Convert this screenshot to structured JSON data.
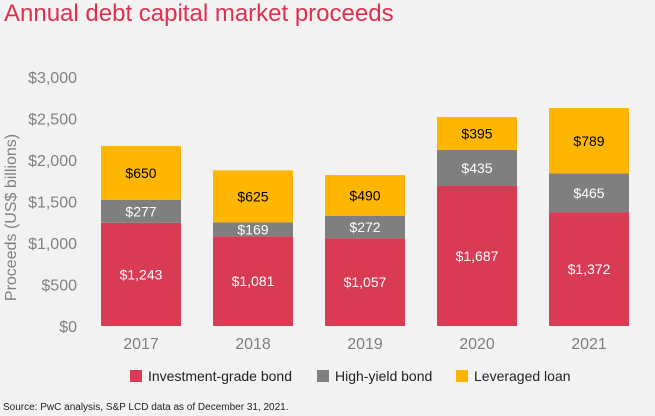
{
  "title": "Annual debt capital market proceeds",
  "source": "Source: PwC analysis, S&P LCD data as of December 31, 2021.",
  "chart_data": {
    "type": "bar",
    "stacked": true,
    "categories": [
      "2017",
      "2018",
      "2019",
      "2020",
      "2021"
    ],
    "series": [
      {
        "name": "Investment-grade bond",
        "color": "#d93a54",
        "values": [
          1243,
          1081,
          1057,
          1687,
          1372
        ],
        "labels": [
          "$1,243",
          "$1,081",
          "$1,057",
          "$1,687",
          "$1,372"
        ]
      },
      {
        "name": "High-yield bond",
        "color": "#7f7f7f",
        "values": [
          277,
          169,
          272,
          435,
          465
        ],
        "labels": [
          "$277",
          "$169",
          "$272",
          "$435",
          "$465"
        ]
      },
      {
        "name": "Leveraged loan",
        "color": "#ffb600",
        "values": [
          650,
          625,
          490,
          395,
          789
        ],
        "labels": [
          "$650",
          "$625",
          "$490",
          "$395",
          "$789"
        ]
      }
    ],
    "ylabel": "Proceeds (US$ billions)",
    "ylim": [
      0,
      3000
    ],
    "yticks": [
      0,
      500,
      1000,
      1500,
      2000,
      2500,
      3000
    ],
    "ytick_labels": [
      "$0",
      "$500",
      "$1,000",
      "$1,500",
      "$2,000",
      "$2,500",
      "$3,000"
    ],
    "grid": false,
    "legend_position": "bottom"
  }
}
